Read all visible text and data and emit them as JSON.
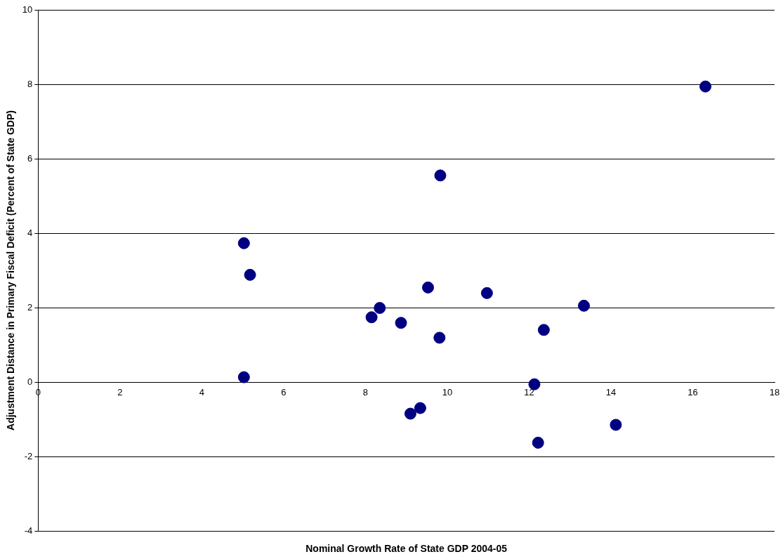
{
  "chart_data": {
    "type": "scatter",
    "xlabel": "Nominal Growth Rate of State GDP 2004-05",
    "ylabel": "Adjustment Distance in Primary Fiscal Deficit (Percent of State GDP)",
    "x": [
      16.31,
      9.83,
      5.03,
      5.18,
      5.03,
      8.15,
      8.35,
      8.87,
      9.53,
      9.81,
      9.1,
      9.34,
      10.97,
      13.34,
      12.36,
      12.13,
      12.22,
      14.12
    ],
    "values": [
      7.94,
      5.55,
      3.73,
      2.88,
      0.13,
      1.74,
      1.99,
      1.59,
      2.54,
      1.19,
      -0.85,
      -0.7,
      2.39,
      2.05,
      1.4,
      -0.06,
      -1.63,
      -1.15
    ],
    "color": "#000080",
    "marker": "circle",
    "xlim": [
      0,
      18
    ],
    "xticks": [
      0,
      2,
      4,
      6,
      8,
      10,
      12,
      14,
      16,
      18
    ],
    "ylim": [
      -4,
      10
    ],
    "yticks": [
      -4,
      -2,
      0,
      2,
      4,
      6,
      8,
      10
    ],
    "grid": "y",
    "legend": false
  }
}
